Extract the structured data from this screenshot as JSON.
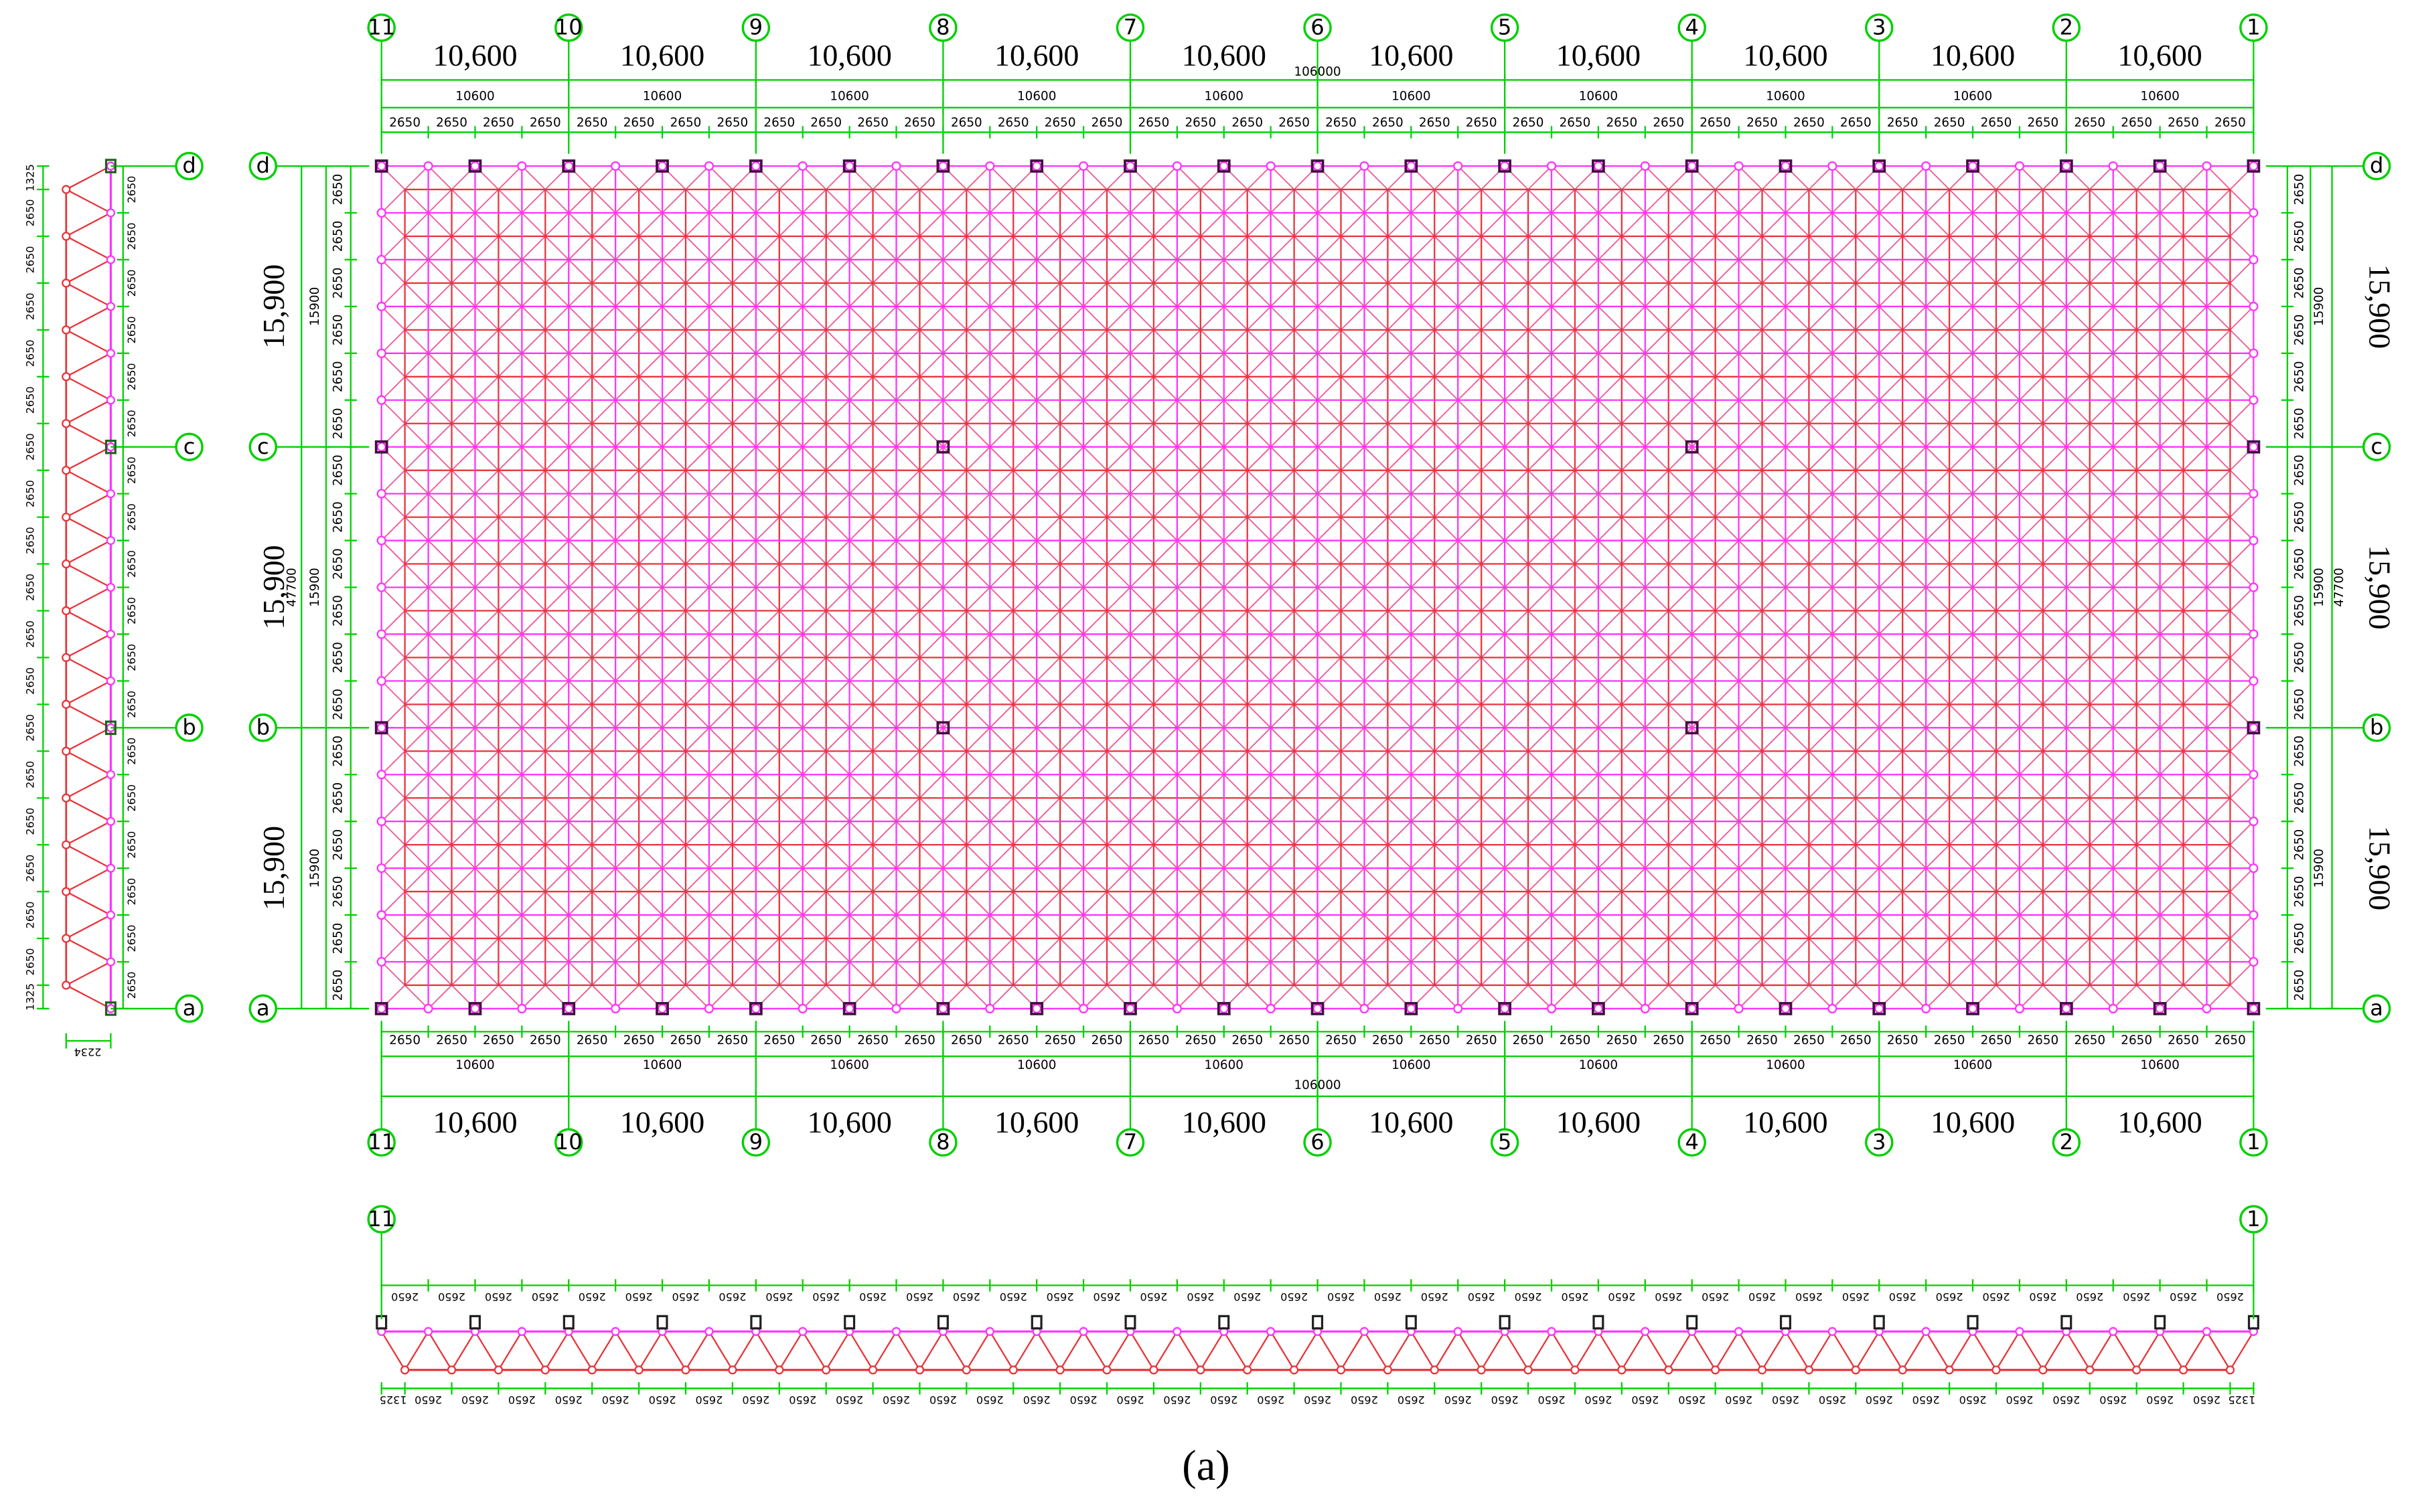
{
  "plan": {
    "axes_x": [
      "11",
      "10",
      "9",
      "8",
      "7",
      "6",
      "5",
      "4",
      "3",
      "2",
      "1"
    ],
    "axes_y": [
      "d",
      "c",
      "b",
      "a"
    ],
    "top_dims": {
      "major": [
        "10,600",
        "10,600",
        "10,600",
        "10,600",
        "10,600",
        "10,600",
        "10,600",
        "10,600",
        "10,600",
        "10,600"
      ],
      "total": "106000",
      "minor": [
        "10600",
        "10600",
        "10600",
        "10600",
        "10600",
        "10600",
        "10600",
        "10600",
        "10600",
        "10600"
      ],
      "bays": [
        "2650",
        "2650",
        "2650",
        "2650",
        "2650",
        "2650",
        "2650",
        "2650",
        "2650",
        "2650",
        "2650",
        "2650",
        "2650",
        "2650",
        "2650",
        "2650",
        "2650",
        "2650",
        "2650",
        "2650",
        "2650",
        "2650",
        "2650",
        "2650",
        "2650",
        "2650",
        "2650",
        "2650",
        "2650",
        "2650",
        "2650",
        "2650",
        "2650",
        "2650",
        "2650",
        "2650",
        "2650",
        "2650",
        "2650",
        "2650"
      ]
    },
    "bottom_dims": {
      "major": [
        "10,600",
        "10,600",
        "10,600",
        "10,600",
        "10,600",
        "10,600",
        "10,600",
        "10,600",
        "10,600",
        "10,600"
      ],
      "total": "106000",
      "minor": [
        "10600",
        "10600",
        "10600",
        "10600",
        "10600",
        "10600",
        "10600",
        "10600",
        "10600",
        "10600"
      ],
      "bays": [
        "2650",
        "2650",
        "2650",
        "2650",
        "2650",
        "2650",
        "2650",
        "2650",
        "2650",
        "2650",
        "2650",
        "2650",
        "2650",
        "2650",
        "2650",
        "2650",
        "2650",
        "2650",
        "2650",
        "2650",
        "2650",
        "2650",
        "2650",
        "2650",
        "2650",
        "2650",
        "2650",
        "2650",
        "2650",
        "2650",
        "2650",
        "2650",
        "2650",
        "2650",
        "2650",
        "2650",
        "2650",
        "2650",
        "2650",
        "2650"
      ]
    },
    "left_dims": {
      "major": [
        "15,900",
        "15,900",
        "15,900"
      ],
      "total": "47700",
      "minor": [
        "15900",
        "15900",
        "15900"
      ],
      "bays": [
        "2650",
        "2650",
        "2650",
        "2650",
        "2650",
        "2650",
        "2650",
        "2650",
        "2650",
        "2650",
        "2650",
        "2650",
        "2650",
        "2650",
        "2650",
        "2650",
        "2650",
        "2650"
      ]
    },
    "right_dims": {
      "major": [
        "15,900",
        "15,900",
        "15,900"
      ],
      "total": "47700",
      "minor": [
        "15900",
        "15900",
        "15900"
      ],
      "bays": [
        "2650",
        "2650",
        "2650",
        "2650",
        "2650",
        "2650",
        "2650",
        "2650",
        "2650",
        "2650",
        "2650",
        "2650",
        "2650",
        "2650",
        "2650",
        "2650",
        "2650",
        "2650"
      ]
    }
  },
  "side_elevation": {
    "axes": [
      "d",
      "c",
      "b",
      "a"
    ],
    "outer_dims": [
      "1325",
      "2650",
      "2650",
      "2650",
      "2650",
      "2650",
      "2650",
      "2650",
      "2650",
      "2650",
      "2650",
      "2650",
      "2650",
      "2650",
      "2650",
      "2650",
      "2650",
      "2650",
      "1325"
    ],
    "inner_dims": [
      "2650",
      "2650",
      "2650",
      "2650",
      "2650",
      "2650",
      "2650",
      "2650",
      "2650",
      "2650",
      "2650",
      "2650",
      "2650",
      "2650",
      "2650",
      "2650",
      "2650",
      "2650"
    ],
    "depth": "2234"
  },
  "front_elevation": {
    "axes": [
      "11",
      "1"
    ],
    "top_dims": [
      "2650",
      "2650",
      "2650",
      "2650",
      "2650",
      "2650",
      "2650",
      "2650",
      "2650",
      "2650",
      "2650",
      "2650",
      "2650",
      "2650",
      "2650",
      "2650",
      "2650",
      "2650",
      "2650",
      "2650",
      "2650",
      "2650",
      "2650",
      "2650",
      "2650",
      "2650",
      "2650",
      "2650",
      "2650",
      "2650",
      "2650",
      "2650",
      "2650",
      "2650",
      "2650",
      "2650",
      "2650",
      "2650",
      "2650",
      "2650"
    ],
    "bottom_dims": [
      "1325",
      "2650",
      "2650",
      "2650",
      "2650",
      "2650",
      "2650",
      "2650",
      "2650",
      "2650",
      "2650",
      "2650",
      "2650",
      "2650",
      "2650",
      "2650",
      "2650",
      "2650",
      "2650",
      "2650",
      "2650",
      "2650",
      "2650",
      "2650",
      "2650",
      "2650",
      "2650",
      "2650",
      "2650",
      "2650",
      "2650",
      "2650",
      "2650",
      "2650",
      "2650",
      "2650",
      "2650",
      "2650",
      "2650",
      "2650",
      "1325"
    ]
  },
  "caption": "(a)"
}
